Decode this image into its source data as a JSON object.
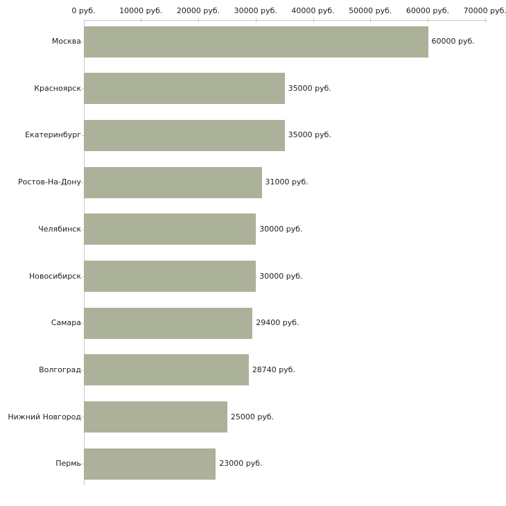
{
  "chart_data": {
    "type": "bar",
    "orientation": "horizontal",
    "title": "",
    "xlabel": "",
    "ylabel": "",
    "categories": [
      "Москва",
      "Красноярск",
      "Екатеринбург",
      "Ростов-На-Дону",
      "Челябинск",
      "Новосибирск",
      "Самара",
      "Волгоград",
      "Нижний Новгород",
      "Пермь"
    ],
    "values": [
      60000,
      35000,
      35000,
      31000,
      30000,
      30000,
      29400,
      28740,
      25000,
      23000
    ],
    "value_labels": [
      "60000 руб.",
      "35000 руб.",
      "35000 руб.",
      "31000 руб.",
      "30000 руб.",
      "30000 руб.",
      "29400 руб.",
      "28740 руб.",
      "25000 руб.",
      "23000 руб."
    ],
    "x_ticks": [
      0,
      10000,
      20000,
      30000,
      40000,
      50000,
      60000,
      70000
    ],
    "x_tick_labels": [
      "0 руб.",
      "10000 руб.",
      "20000 руб.",
      "30000 руб.",
      "40000 руб.",
      "50000 руб.",
      "60000 руб.",
      "70000 руб."
    ],
    "xlim": [
      0,
      70000
    ],
    "grid": false,
    "legend": null,
    "colors": {
      "bar": "#acb199",
      "axis": "#c6c6c6",
      "tick": "#d0cda8",
      "text": "#1d1d1d",
      "background": "#ffffff"
    }
  }
}
